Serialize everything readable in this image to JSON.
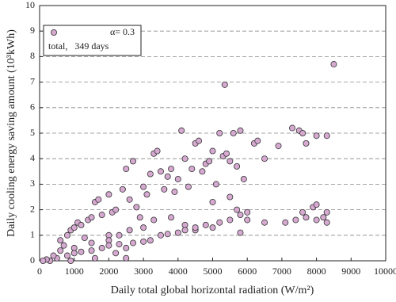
{
  "chart_data": {
    "type": "scatter",
    "xlabel": "Daily total global horizontal radiation (W/m²)",
    "ylabel": "Daily cooling energy saving amount (10³kWh)",
    "annotation": "total,   349 days",
    "xlim": [
      0,
      10000
    ],
    "ylim": [
      0,
      10
    ],
    "xticks": [
      0,
      1000,
      2000,
      3000,
      4000,
      5000,
      6000,
      7000,
      8000,
      9000,
      10000
    ],
    "yticks": [
      0,
      1,
      2,
      3,
      4,
      5,
      6,
      7,
      8,
      9,
      10
    ],
    "grid": true,
    "series": [
      {
        "name": "α= 0.3",
        "color": "#d6a9d1",
        "x": [
          600,
          800,
          900,
          1000,
          1100,
          1200,
          1400,
          1500,
          1600,
          1700,
          1800,
          2000,
          2100,
          2200,
          2400,
          2500,
          2600,
          2700,
          2800,
          3000,
          3100,
          3200,
          3300,
          3400,
          3500,
          3600,
          3700,
          3800,
          3900,
          4000,
          4100,
          4200,
          4300,
          4400,
          4500,
          4600,
          4700,
          4800,
          4900,
          5000,
          5100,
          5200,
          5300,
          5400,
          5500,
          5600,
          5700,
          5800,
          5900,
          6200,
          6300,
          6500,
          6900,
          7300,
          7500,
          7600,
          7700,
          8000,
          8300,
          5350,
          8500,
          2900,
          2000,
          1000,
          1500,
          2000,
          2300,
          2600,
          3000,
          3300,
          3800,
          4200,
          4500,
          5000,
          5500,
          5700,
          5800,
          6000,
          7600,
          7900,
          8000,
          8300,
          8200,
          500,
          800,
          1000,
          1200,
          1500,
          1800,
          2000,
          2300,
          2500,
          2700,
          3000,
          3200,
          3500,
          3700,
          4000,
          4200,
          4500,
          4800,
          5000,
          5200,
          5500,
          5800,
          6000,
          6500,
          7100,
          7400,
          7700,
          8000,
          8300,
          2200,
          1600,
          300,
          200,
          400,
          600,
          700,
          100,
          900,
          1300,
          2500
        ],
        "values": [
          0.8,
          1.0,
          1.2,
          1.3,
          1.5,
          1.4,
          1.6,
          1.7,
          2.3,
          2.4,
          1.8,
          2.6,
          1.9,
          2.0,
          2.8,
          3.6,
          2.4,
          3.9,
          2.1,
          2.9,
          2.6,
          3.4,
          4.2,
          4.3,
          3.5,
          2.8,
          3.3,
          3.6,
          2.7,
          3.2,
          5.1,
          4.0,
          2.9,
          3.6,
          4.6,
          4.7,
          3.5,
          3.8,
          3.9,
          4.3,
          3.0,
          5.0,
          4.1,
          4.2,
          3.9,
          5.0,
          3.7,
          5.1,
          3.2,
          4.6,
          4.7,
          4.0,
          4.5,
          5.2,
          5.1,
          5.0,
          4.6,
          4.9,
          4.9,
          6.9,
          7.7,
          1.7,
          1.0,
          0.5,
          0.7,
          0.8,
          1.0,
          1.2,
          1.3,
          1.6,
          1.7,
          1.4,
          1.2,
          2.3,
          2.5,
          2.0,
          1.8,
          1.9,
          1.9,
          2.1,
          2.2,
          1.9,
          1.7,
          0.1,
          0.2,
          0.3,
          0.35,
          0.4,
          0.5,
          0.6,
          0.65,
          0.5,
          0.7,
          0.75,
          0.8,
          1.0,
          1.05,
          1.1,
          1.2,
          1.3,
          1.4,
          1.3,
          1.5,
          1.6,
          1.1,
          1.6,
          1.5,
          1.5,
          1.6,
          1.7,
          1.6,
          1.5,
          0.3,
          0.1,
          0.0,
          0.05,
          0.2,
          0.4,
          0.6,
          0.0,
          0.0,
          0.9,
          0.1
        ]
      }
    ]
  }
}
